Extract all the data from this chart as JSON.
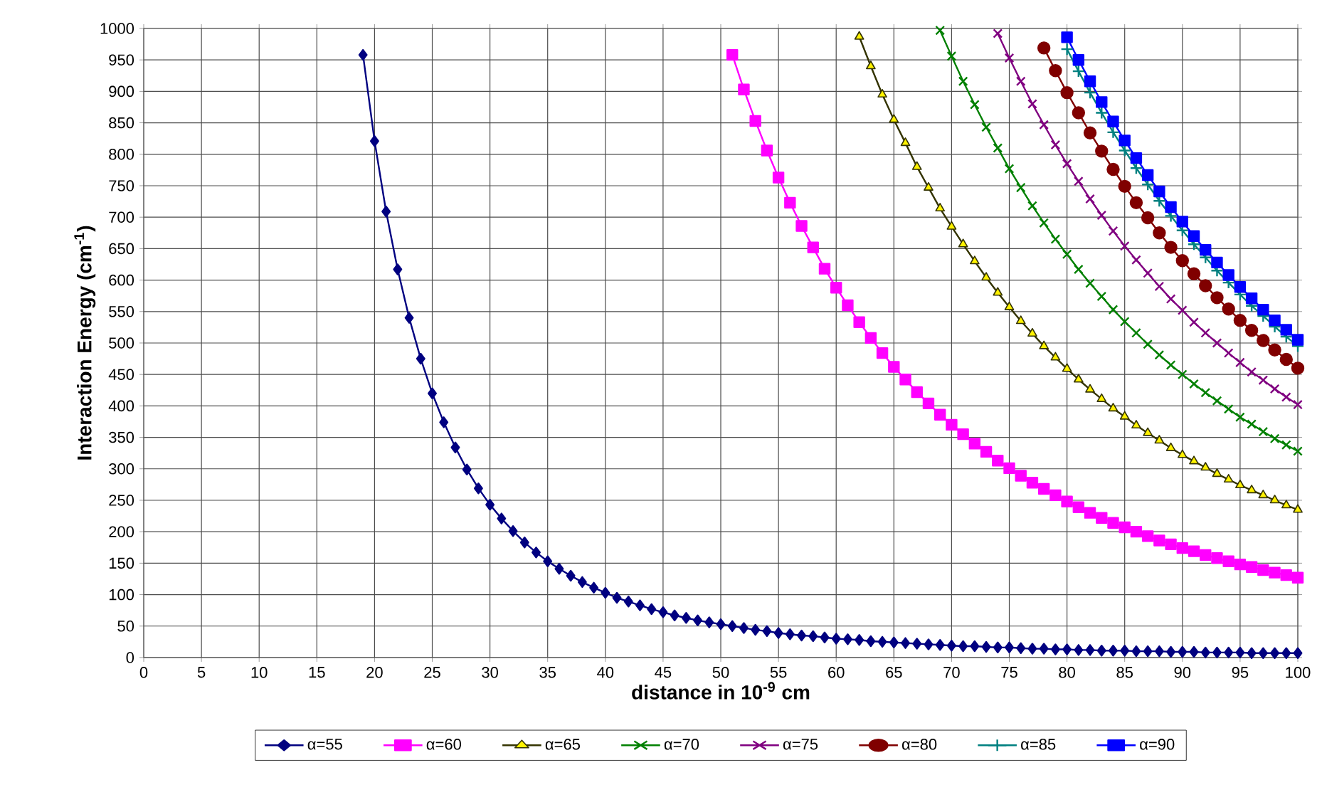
{
  "chart_data": {
    "type": "line",
    "xlabel": "distance in 10$^{-9}$ cm",
    "ylabel": "Interaction Energy (cm$^{-1}$)",
    "xlim": [
      0,
      100
    ],
    "xticks": [
      0,
      5,
      10,
      15,
      20,
      25,
      30,
      35,
      40,
      45,
      50,
      55,
      60,
      65,
      70,
      75,
      80,
      85,
      90,
      95,
      100
    ],
    "ylim": [
      0,
      1000
    ],
    "yticks": [
      0,
      50,
      100,
      150,
      200,
      250,
      300,
      350,
      400,
      450,
      500,
      550,
      600,
      650,
      700,
      750,
      800,
      850,
      900,
      950,
      1000
    ],
    "grid": true,
    "legend": "bottom",
    "line_style": "solid",
    "series": [
      {
        "name": "α=55",
        "color": "#000080",
        "marker": "diamond",
        "x": [
          19,
          20,
          21,
          22,
          23,
          24,
          25,
          26,
          27,
          28,
          29,
          30,
          31,
          32,
          33,
          34,
          35,
          36,
          37,
          38,
          39,
          40,
          41,
          42,
          43,
          44,
          45,
          46,
          47,
          48,
          49,
          50,
          51,
          52,
          53,
          54,
          55,
          56,
          57,
          58,
          59,
          60,
          61,
          62,
          63,
          64,
          65,
          66,
          67,
          68,
          69,
          70,
          71,
          72,
          73,
          74,
          75,
          76,
          77,
          78,
          79,
          80,
          81,
          82,
          83,
          84,
          85,
          86,
          87,
          88,
          89,
          90,
          91,
          92,
          93,
          94,
          95,
          96,
          97,
          98,
          99,
          100
        ],
        "values": [
          958,
          821,
          709,
          617,
          540,
          475,
          420,
          374,
          334,
          299,
          269,
          243,
          221,
          201,
          183,
          167,
          153,
          141,
          130,
          120,
          111,
          103,
          95,
          89,
          83,
          77,
          72,
          67,
          63,
          59,
          56,
          53,
          50,
          47,
          44,
          42,
          39,
          37,
          35,
          34,
          32,
          30,
          29,
          28,
          26,
          25,
          24,
          23,
          22,
          21,
          20,
          19,
          18,
          18,
          17,
          16,
          16,
          15,
          14,
          14,
          13,
          13,
          12,
          12,
          11,
          11,
          11,
          10,
          10,
          10,
          9,
          9,
          9,
          8,
          8,
          8,
          8,
          7,
          7,
          7,
          7,
          7
        ]
      },
      {
        "name": "α=60",
        "color": "#ff00ff",
        "marker": "square",
        "x": [
          51,
          52,
          53,
          54,
          55,
          56,
          57,
          58,
          59,
          60,
          61,
          62,
          63,
          64,
          65,
          66,
          67,
          68,
          69,
          70,
          71,
          72,
          73,
          74,
          75,
          76,
          77,
          78,
          79,
          80,
          81,
          82,
          83,
          84,
          85,
          86,
          87,
          88,
          89,
          90,
          91,
          92,
          93,
          94,
          95,
          96,
          97,
          98,
          99,
          100
        ],
        "values": [
          958,
          903,
          853,
          806,
          763,
          723,
          686,
          652,
          618,
          588,
          560,
          533,
          508,
          484,
          462,
          442,
          422,
          404,
          386,
          370,
          355,
          340,
          327,
          313,
          301,
          289,
          278,
          268,
          258,
          248,
          239,
          230,
          222,
          214,
          207,
          200,
          193,
          186,
          180,
          174,
          169,
          163,
          158,
          153,
          148,
          144,
          139,
          135,
          131,
          127
        ]
      },
      {
        "name": "α=65",
        "color": "#333300",
        "marker": "triangle",
        "x": [
          62,
          63,
          64,
          65,
          66,
          67,
          68,
          69,
          70,
          71,
          72,
          73,
          74,
          75,
          76,
          77,
          78,
          79,
          80,
          81,
          82,
          83,
          84,
          85,
          86,
          87,
          88,
          89,
          90,
          91,
          92,
          93,
          94,
          95,
          96,
          97,
          98,
          99,
          100
        ],
        "values": [
          987,
          940,
          895,
          855,
          818,
          780,
          747,
          714,
          685,
          657,
          630,
          604,
          580,
          557,
          535,
          515,
          495,
          477,
          459,
          442,
          426,
          411,
          396,
          383,
          369,
          357,
          345,
          333,
          322,
          312,
          302,
          292,
          283,
          274,
          266,
          258,
          250,
          242,
          235
        ]
      },
      {
        "name": "α=70",
        "color": "#008000",
        "marker": "cross",
        "x": [
          69,
          70,
          71,
          72,
          73,
          74,
          75,
          76,
          77,
          78,
          79,
          80,
          81,
          82,
          83,
          84,
          85,
          86,
          87,
          88,
          89,
          90,
          91,
          92,
          93,
          94,
          95,
          96,
          97,
          98,
          99,
          100
        ],
        "values": [
          997,
          956,
          916,
          879,
          843,
          810,
          777,
          747,
          718,
          691,
          665,
          641,
          617,
          595,
          574,
          553,
          534,
          516,
          498,
          481,
          465,
          450,
          435,
          421,
          408,
          395,
          382,
          371,
          359,
          348,
          338,
          328
        ]
      },
      {
        "name": "α=75",
        "color": "#800080",
        "marker": "cross",
        "x": [
          74,
          75,
          76,
          77,
          78,
          79,
          80,
          81,
          82,
          83,
          84,
          85,
          86,
          87,
          88,
          89,
          90,
          91,
          92,
          93,
          94,
          95,
          96,
          97,
          98,
          99,
          100
        ],
        "values": [
          992,
          953,
          916,
          880,
          847,
          815,
          785,
          757,
          729,
          703,
          678,
          654,
          632,
          611,
          590,
          570,
          552,
          533,
          516,
          500,
          484,
          469,
          454,
          441,
          427,
          414,
          402
        ]
      },
      {
        "name": "α=80",
        "color": "#800000",
        "marker": "circle",
        "x": [
          78,
          79,
          80,
          81,
          82,
          83,
          84,
          85,
          86,
          87,
          88,
          89,
          90,
          91,
          92,
          93,
          94,
          95,
          96,
          97,
          98,
          99,
          100
        ],
        "values": [
          969,
          933,
          898,
          866,
          834,
          805,
          776,
          749,
          723,
          699,
          675,
          652,
          631,
          610,
          591,
          572,
          554,
          536,
          520,
          504,
          489,
          474,
          460
        ]
      },
      {
        "name": "α=85",
        "color": "#008080",
        "marker": "plus",
        "x": [
          80,
          81,
          82,
          83,
          84,
          85,
          86,
          87,
          88,
          89,
          90,
          91,
          92,
          93,
          94,
          95,
          96,
          97,
          98,
          99,
          100
        ],
        "values": [
          967,
          932,
          898,
          866,
          835,
          806,
          778,
          752,
          726,
          702,
          679,
          657,
          636,
          615,
          596,
          577,
          559,
          543,
          526,
          510,
          495
        ]
      },
      {
        "name": "α=90",
        "color": "#0000ff",
        "marker": "square",
        "x": [
          80,
          81,
          82,
          83,
          84,
          85,
          86,
          87,
          88,
          89,
          90,
          91,
          92,
          93,
          94,
          95,
          96,
          97,
          98,
          99,
          100
        ],
        "values": [
          986,
          950,
          916,
          883,
          852,
          822,
          794,
          767,
          741,
          716,
          693,
          670,
          648,
          628,
          608,
          589,
          571,
          553,
          536,
          521,
          505
        ]
      }
    ]
  }
}
